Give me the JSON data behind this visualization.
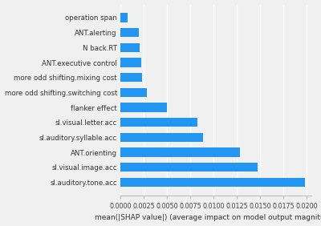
{
  "categories": [
    "operation span",
    "ANT.alerting",
    "N back.RT",
    "ANT.executive control",
    "more odd shifting.mixing cost",
    "more odd shifting.switching cost",
    "flanker effect",
    "sl.visual.letter.acc",
    "sl.auditory.syllable.acc",
    "ANT.orienting",
    "sl.visual.image.acc",
    "sl.auditory.tone.acc"
  ],
  "values": [
    0.00075,
    0.00195,
    0.0021,
    0.0022,
    0.00235,
    0.0028,
    0.005,
    0.0083,
    0.0089,
    0.0128,
    0.0147,
    0.0198
  ],
  "bar_color": "#2196f3",
  "xlabel": "mean(|SHAP value|) (average impact on model output magnitude)",
  "xlim": [
    0,
    0.0205
  ],
  "xticks": [
    0.0,
    0.0025,
    0.005,
    0.0075,
    0.01,
    0.0125,
    0.015,
    0.0175,
    0.02
  ],
  "xtick_labels": [
    "0.0000",
    "0.0025",
    "0.0050",
    "0.0075",
    "0.0100",
    "0.0125",
    "0.0150",
    "0.0175",
    "0.0200"
  ],
  "background_color": "#f0f0f0",
  "bar_height": 0.6,
  "label_fontsize": 6.2,
  "xlabel_fontsize": 6.5,
  "xtick_fontsize": 5.8
}
